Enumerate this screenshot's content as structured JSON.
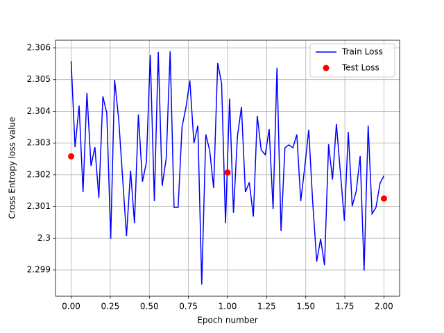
{
  "chart_data": {
    "type": "line",
    "x_label": "Epoch number",
    "y_label": "Cross Entropy loss value",
    "xlim": [
      -0.1,
      2.1
    ],
    "ylim": [
      2.29817,
      2.30624
    ],
    "xticks": [
      {
        "value": 0,
        "label": "0.00"
      },
      {
        "value": 0.25,
        "label": "0.25"
      },
      {
        "value": 0.5,
        "label": "0.50"
      },
      {
        "value": 0.75,
        "label": "0.75"
      },
      {
        "value": 1,
        "label": "1.00"
      },
      {
        "value": 1.25,
        "label": "1.25"
      },
      {
        "value": 1.5,
        "label": "1.50"
      },
      {
        "value": 1.75,
        "label": "1.75"
      },
      {
        "value": 2,
        "label": "2.00"
      }
    ],
    "yticks": [
      2.299,
      2.3,
      2.301,
      2.302,
      2.303,
      2.304,
      2.305,
      2.306
    ],
    "grid": true,
    "legend": "upper right",
    "series": [
      {
        "name": "Train Loss",
        "color": "#0000ff",
        "type": "line",
        "x": [
          0,
          0.025,
          0.051,
          0.076,
          0.101,
          0.127,
          0.152,
          0.177,
          0.203,
          0.228,
          0.253,
          0.278,
          0.304,
          0.329,
          0.354,
          0.38,
          0.405,
          0.43,
          0.456,
          0.481,
          0.506,
          0.532,
          0.557,
          0.582,
          0.608,
          0.633,
          0.658,
          0.684,
          0.709,
          0.734,
          0.759,
          0.785,
          0.81,
          0.835,
          0.861,
          0.886,
          0.911,
          0.937,
          0.962,
          0.987,
          1.013,
          1.038,
          1.063,
          1.089,
          1.114,
          1.139,
          1.165,
          1.19,
          1.215,
          1.241,
          1.266,
          1.291,
          1.316,
          1.342,
          1.367,
          1.392,
          1.418,
          1.443,
          1.468,
          1.494,
          1.519,
          1.544,
          1.57,
          1.595,
          1.62,
          1.646,
          1.671,
          1.696,
          1.722,
          1.747,
          1.772,
          1.797,
          1.823,
          1.848,
          1.873,
          1.899,
          1.924,
          1.949,
          1.975,
          2.0
        ],
        "values": [
          2.30558,
          2.30287,
          2.30418,
          2.30145,
          2.30458,
          2.30228,
          2.30287,
          2.30127,
          2.30447,
          2.30394,
          2.29998,
          2.30499,
          2.30375,
          2.30191,
          2.30007,
          2.30213,
          2.30047,
          2.3039,
          2.30178,
          2.30239,
          2.30578,
          2.30117,
          2.30587,
          2.30165,
          2.30252,
          2.30589,
          2.30097,
          2.30097,
          2.30351,
          2.30412,
          2.30497,
          2.303,
          2.30355,
          2.29854,
          2.30327,
          2.30276,
          2.30158,
          2.30552,
          2.30488,
          2.30047,
          2.3044,
          2.3008,
          2.3032,
          2.30414,
          2.30145,
          2.30176,
          2.30068,
          2.30386,
          2.30278,
          2.30263,
          2.30344,
          2.30092,
          2.30537,
          2.30023,
          2.30285,
          2.30294,
          2.30285,
          2.30327,
          2.30117,
          2.30226,
          2.30342,
          2.30117,
          2.29926,
          2.29998,
          2.29915,
          2.30296,
          2.30185,
          2.3036,
          2.30204,
          2.30055,
          2.30335,
          2.30101,
          2.30149,
          2.30259,
          2.29898,
          2.30355,
          2.30077,
          2.30097,
          2.30173,
          2.30197
        ]
      },
      {
        "name": "Test Loss",
        "color": "#ff0000",
        "type": "scatter",
        "x": [
          0,
          1,
          2
        ],
        "values": [
          2.30258,
          2.30207,
          2.30125
        ]
      }
    ]
  }
}
